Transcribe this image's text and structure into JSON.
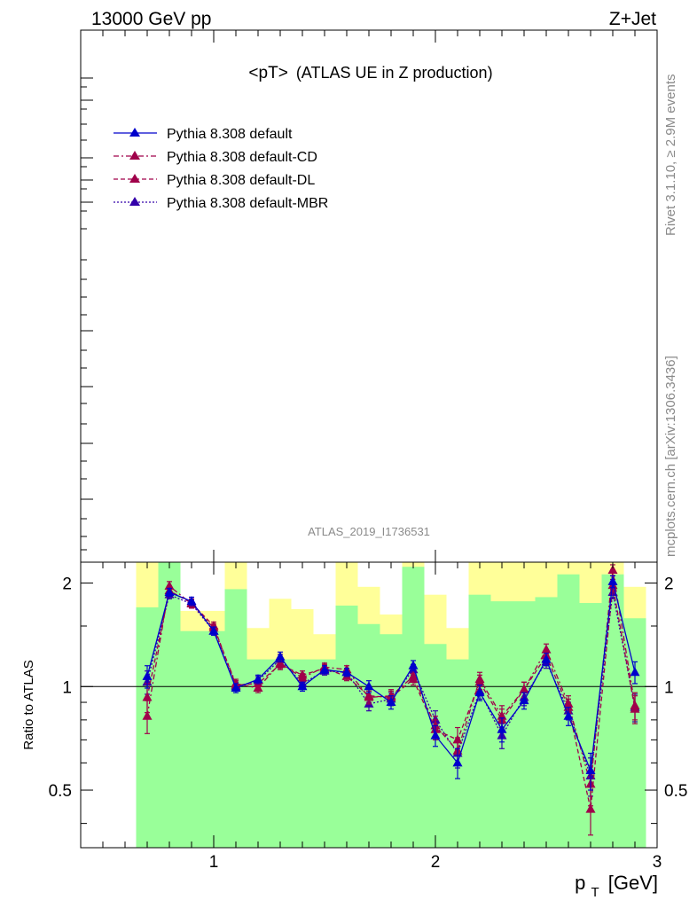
{
  "header": {
    "left_label": "13000 GeV pp",
    "right_label": "Z+Jet",
    "plot_title_main": "<pT>",
    "plot_title_sub": "(ATLAS UE in Z production)",
    "analysis_id": "ATLAS_2019_I1736531",
    "side_label_top": "Rivet 3.1.10, ≥ 2.9M events",
    "side_label_bottom": "mcplots.cern.ch [arXiv:1306.3436]"
  },
  "legend": {
    "entries": [
      {
        "label": "Pythia 8.308 default",
        "color": "#0000cc",
        "dash": "solid"
      },
      {
        "label": "Pythia 8.308 default-CD",
        "color": "#a0004a",
        "dash": "dashdot"
      },
      {
        "label": "Pythia 8.308 default-DL",
        "color": "#a0004a",
        "dash": "dashed"
      },
      {
        "label": "Pythia 8.308 default-MBR",
        "color": "#3300aa",
        "dash": "dotted"
      }
    ]
  },
  "chart_data": {
    "type": "line",
    "xlabel": "p_T [GeV]",
    "xlabel_main": "p",
    "xlabel_sub": "T",
    "xlabel_unit": "[GeV]",
    "ylabel": "Ratio to ATLAS",
    "xlim": [
      0.4,
      3.0
    ],
    "ylim": [
      0.34,
      2.3
    ],
    "x_ticks": [
      {
        "v": 1,
        "label": "1"
      },
      {
        "v": 2,
        "label": "2"
      },
      {
        "v": 3,
        "label": "3"
      }
    ],
    "y_ticks": [
      {
        "v": 0.5,
        "label": "0.5"
      },
      {
        "v": 1,
        "label": "1"
      },
      {
        "v": 2,
        "label": "2"
      }
    ],
    "reference_line": 1,
    "x": [
      0.7,
      0.8,
      0.9,
      1.0,
      1.1,
      1.2,
      1.3,
      1.4,
      1.5,
      1.6,
      1.7,
      1.8,
      1.9,
      2.0,
      2.1,
      2.2,
      2.3,
      2.4,
      2.5,
      2.6,
      2.7,
      2.8,
      2.9
    ],
    "bands": {
      "x_edges": [
        0.65,
        0.75,
        0.85,
        0.95,
        1.05,
        1.15,
        1.25,
        1.35,
        1.45,
        1.55,
        1.65,
        1.75,
        1.85,
        1.95,
        2.05,
        2.15,
        2.25,
        2.35,
        2.45,
        2.55,
        2.65,
        2.75,
        2.85,
        2.95
      ],
      "green_color": "#99ff99",
      "yellow_color": "#ffff99",
      "green_low": [
        0.34,
        0.34,
        0.34,
        0.34,
        0.34,
        0.34,
        0.34,
        0.34,
        0.34,
        0.34,
        0.34,
        0.34,
        0.34,
        0.34,
        0.34,
        0.34,
        0.34,
        0.34,
        0.34,
        0.34,
        0.34,
        0.34,
        0.34
      ],
      "green_high": [
        1.7,
        2.3,
        1.45,
        1.45,
        1.92,
        1.2,
        1.2,
        1.2,
        1.2,
        1.72,
        1.52,
        1.42,
        2.23,
        1.33,
        1.2,
        1.85,
        1.77,
        1.77,
        1.82,
        2.12,
        1.75,
        2.12,
        1.58
      ],
      "yellow_low": [
        0.34,
        0.34,
        0.72,
        0.7,
        0.34,
        0.84,
        0.68,
        0.76,
        0.55,
        0.34,
        0.84,
        0.64,
        0.34,
        0.64,
        0.34,
        0.34,
        0.54,
        0.34,
        0.55,
        0.34,
        0.34,
        0.34,
        0.54
      ],
      "yellow_high": [
        2.3,
        2.3,
        1.66,
        1.66,
        2.3,
        1.48,
        1.8,
        1.68,
        1.42,
        2.3,
        1.95,
        1.62,
        2.3,
        1.85,
        1.48,
        2.3,
        2.3,
        2.3,
        2.3,
        2.3,
        2.3,
        2.3,
        1.95
      ]
    },
    "series": [
      {
        "name": "Pythia 8.308 default",
        "color": "#0000cc",
        "values": [
          1.07,
          1.88,
          1.77,
          1.45,
          0.99,
          1.05,
          1.22,
          1.0,
          1.12,
          1.1,
          1.0,
          0.9,
          1.15,
          0.72,
          0.6,
          0.96,
          0.75,
          0.91,
          1.2,
          0.82,
          0.57,
          2.02,
          1.1
        ],
        "errors": [
          0.08,
          0.05,
          0.05,
          0.04,
          0.03,
          0.03,
          0.04,
          0.03,
          0.03,
          0.03,
          0.04,
          0.04,
          0.04,
          0.05,
          0.06,
          0.05,
          0.06,
          0.05,
          0.05,
          0.05,
          0.07,
          0.08,
          0.08
        ]
      },
      {
        "name": "Pythia 8.308 default-CD",
        "color": "#a0004a",
        "values": [
          0.82,
          1.96,
          1.74,
          1.48,
          1.02,
          0.99,
          1.17,
          1.06,
          1.14,
          1.12,
          0.93,
          0.94,
          1.07,
          0.77,
          0.65,
          1.05,
          0.82,
          0.98,
          1.28,
          0.89,
          0.52,
          2.18,
          0.88
        ],
        "errors": [
          0.09,
          0.06,
          0.05,
          0.04,
          0.03,
          0.03,
          0.04,
          0.03,
          0.03,
          0.03,
          0.04,
          0.04,
          0.04,
          0.05,
          0.06,
          0.05,
          0.06,
          0.05,
          0.05,
          0.05,
          0.07,
          0.08,
          0.08
        ]
      },
      {
        "name": "Pythia 8.308 default-DL",
        "color": "#a0004a",
        "values": [
          0.93,
          1.9,
          1.75,
          1.5,
          1.01,
          1.02,
          1.16,
          1.08,
          1.13,
          1.07,
          0.94,
          0.93,
          1.05,
          0.75,
          0.7,
          1.03,
          0.8,
          0.98,
          1.23,
          0.87,
          0.44,
          1.97,
          0.86
        ],
        "errors": [
          0.09,
          0.06,
          0.05,
          0.04,
          0.03,
          0.03,
          0.04,
          0.03,
          0.03,
          0.03,
          0.04,
          0.04,
          0.04,
          0.05,
          0.06,
          0.05,
          0.06,
          0.05,
          0.05,
          0.05,
          0.07,
          0.08,
          0.08
        ]
      },
      {
        "name": "Pythia 8.308 default-MBR",
        "color": "#3300aa",
        "values": [
          1.03,
          1.85,
          1.74,
          1.45,
          1.0,
          1.04,
          1.2,
          1.02,
          1.11,
          1.1,
          0.89,
          0.92,
          1.12,
          0.8,
          0.64,
          0.97,
          0.72,
          0.93,
          1.18,
          0.85,
          0.55,
          1.88,
          0.87
        ],
        "errors": [
          0.08,
          0.05,
          0.05,
          0.04,
          0.03,
          0.03,
          0.04,
          0.03,
          0.03,
          0.03,
          0.04,
          0.04,
          0.04,
          0.05,
          0.06,
          0.05,
          0.06,
          0.05,
          0.05,
          0.05,
          0.07,
          0.08,
          0.08
        ]
      }
    ]
  }
}
